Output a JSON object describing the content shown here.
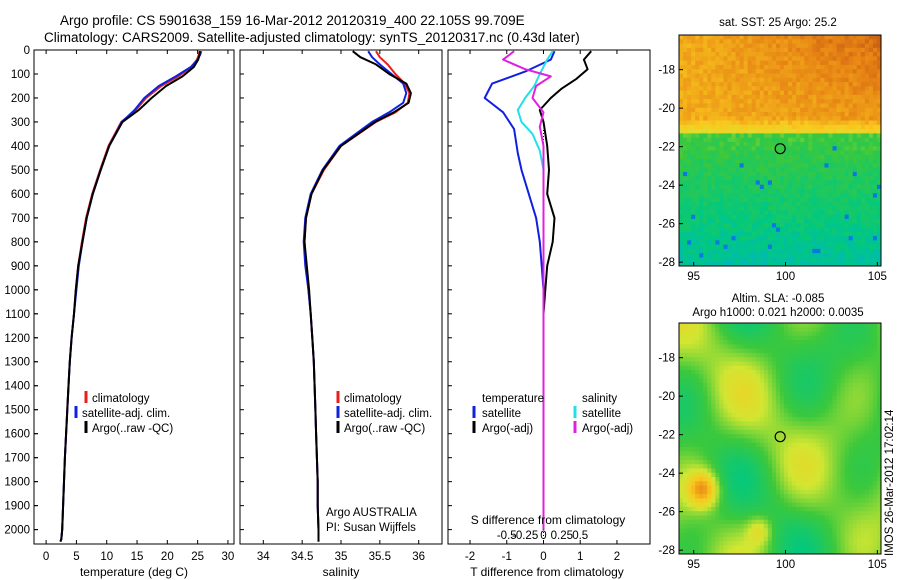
{
  "header": {
    "title_line1": "Argo profile: CS 5901638_159 16-Mar-2012 20120319_400 22.105S 99.709E",
    "title_line2": "Climatology: CARS2009. Satellite-adjusted climatology: synTS_20120317.nc (0.43d later)"
  },
  "watermark": "IMOS 26-Mar-2012 17:02:14",
  "colors": {
    "climatology": "#e8201a",
    "satellite": "#1020e0",
    "argo": "#000000",
    "sal_satellite": "#22e0e8",
    "sal_argo": "#e020e0"
  },
  "chart_data": [
    {
      "type": "line",
      "xlabel": "temperature (deg C)",
      "ylabel": "",
      "xlim": [
        -2,
        31
      ],
      "ylim": [
        2060,
        0
      ],
      "xticks": [
        "0",
        "5",
        "10",
        "15",
        "20",
        "25",
        "30"
      ],
      "xtick_values": [
        0,
        5,
        10,
        15,
        20,
        25,
        30
      ],
      "yticks": [
        "0",
        "100",
        "200",
        "300",
        "400",
        "500",
        "600",
        "700",
        "800",
        "900",
        "1000",
        "1100",
        "1200",
        "1300",
        "1400",
        "1500",
        "1600",
        "1700",
        "1800",
        "1900",
        "2000"
      ],
      "ytick_values": [
        0,
        100,
        200,
        300,
        400,
        500,
        600,
        700,
        800,
        900,
        1000,
        1100,
        1200,
        1300,
        1400,
        1500,
        1600,
        1700,
        1800,
        1900,
        2000
      ],
      "legend": [
        "climatology",
        "satellite-adj. clim.",
        "Argo(..raw -QC)"
      ],
      "series": [
        {
          "name": "climatology",
          "color_key": "climatology",
          "x": [
            25.3,
            25.2,
            24.9,
            24.0,
            21.8,
            19.0,
            16.5,
            14.8,
            12.4,
            10.3,
            8.9,
            7.6,
            6.6,
            5.9,
            5.3,
            4.9,
            4.6,
            4.2,
            3.9,
            3.7,
            3.5,
            3.3,
            3.1,
            2.95,
            2.8,
            2.65,
            2.5,
            2.35
          ],
          "y": [
            5,
            20,
            40,
            70,
            110,
            150,
            200,
            250,
            300,
            400,
            500,
            600,
            700,
            800,
            900,
            1000,
            1100,
            1200,
            1300,
            1400,
            1500,
            1600,
            1700,
            1800,
            1900,
            2000,
            2040,
            2050
          ]
        },
        {
          "name": "satellite-adj. clim.",
          "color_key": "satellite",
          "x": [
            25.6,
            25.4,
            25.0,
            23.9,
            21.4,
            18.6,
            16.2,
            14.6,
            12.5,
            10.4,
            9.0,
            7.7,
            6.7,
            6.0,
            5.4,
            5.0,
            4.6,
            4.2,
            3.9,
            3.7,
            3.5,
            3.3,
            3.1,
            2.95,
            2.8,
            2.65,
            2.5,
            2.35
          ],
          "y": [
            5,
            20,
            40,
            70,
            110,
            150,
            200,
            250,
            300,
            400,
            500,
            600,
            700,
            800,
            900,
            1000,
            1100,
            1200,
            1300,
            1400,
            1500,
            1600,
            1700,
            1800,
            1900,
            2000,
            2040,
            2050
          ]
        },
        {
          "name": "Argo(..raw -QC)",
          "color_key": "argo",
          "x": [
            25.4,
            25.3,
            25.1,
            24.4,
            22.5,
            19.8,
            17.4,
            15.3,
            12.6,
            10.4,
            9.0,
            7.7,
            6.7,
            6.0,
            5.3,
            4.9,
            4.6,
            4.2,
            3.9,
            3.7,
            3.5,
            3.3,
            3.1,
            2.95,
            2.8,
            2.65,
            2.5,
            2.35
          ],
          "y": [
            5,
            20,
            40,
            70,
            110,
            150,
            200,
            250,
            300,
            400,
            500,
            600,
            700,
            800,
            900,
            1000,
            1100,
            1200,
            1300,
            1400,
            1500,
            1600,
            1700,
            1800,
            1900,
            2000,
            2040,
            2050
          ]
        }
      ]
    },
    {
      "type": "line",
      "xlabel": "salinity",
      "ylabel": "",
      "xlim": [
        33.7,
        36.3
      ],
      "ylim": [
        2060,
        0
      ],
      "xticks": [
        "34",
        "34.5",
        "35",
        "35.5",
        "36"
      ],
      "xtick_values": [
        34,
        34.5,
        35,
        35.5,
        36
      ],
      "legend": [
        "climatology",
        "satellite-adj. clim.",
        "Argo(..raw -QC)"
      ],
      "annotation": [
        "Argo AUSTRALIA",
        "PI: Susan Wijffels"
      ],
      "series": [
        {
          "name": "climatology",
          "color_key": "climatology",
          "x": [
            35.45,
            35.5,
            35.6,
            35.7,
            35.82,
            35.88,
            35.86,
            35.7,
            35.45,
            35.0,
            34.78,
            34.62,
            34.55,
            34.53,
            34.55,
            34.58,
            34.61,
            34.63,
            34.65,
            34.66,
            34.67,
            34.68,
            34.69,
            34.7,
            34.7,
            34.71,
            34.71
          ],
          "y": [
            5,
            30,
            60,
            100,
            140,
            180,
            220,
            260,
            300,
            400,
            500,
            600,
            700,
            800,
            900,
            1000,
            1100,
            1200,
            1300,
            1400,
            1500,
            1600,
            1700,
            1800,
            1900,
            2000,
            2050
          ]
        },
        {
          "name": "satellite-adj. clim.",
          "color_key": "satellite",
          "x": [
            35.35,
            35.4,
            35.5,
            35.65,
            35.8,
            35.84,
            35.8,
            35.62,
            35.4,
            34.98,
            34.76,
            34.61,
            34.54,
            34.52,
            34.54,
            34.58,
            34.61,
            34.63,
            34.65,
            34.66,
            34.67,
            34.68,
            34.69,
            34.7,
            34.7,
            34.71,
            34.71
          ],
          "y": [
            5,
            30,
            60,
            100,
            140,
            180,
            220,
            260,
            300,
            400,
            500,
            600,
            700,
            800,
            900,
            1000,
            1100,
            1200,
            1300,
            1400,
            1500,
            1600,
            1700,
            1800,
            1900,
            2000,
            2050
          ]
        },
        {
          "name": "Argo(..raw -QC)",
          "color_key": "argo",
          "x": [
            35.15,
            35.25,
            35.45,
            35.62,
            35.84,
            35.9,
            35.87,
            35.68,
            35.44,
            35.0,
            34.77,
            34.62,
            34.55,
            34.53,
            34.56,
            34.59,
            34.61,
            34.63,
            34.65,
            34.66,
            34.67,
            34.68,
            34.69,
            34.7,
            34.7,
            34.71,
            34.71
          ],
          "y": [
            5,
            30,
            60,
            100,
            140,
            180,
            220,
            260,
            300,
            400,
            500,
            600,
            700,
            800,
            900,
            1000,
            1100,
            1200,
            1300,
            1400,
            1500,
            1600,
            1700,
            1800,
            1900,
            2000,
            2050
          ]
        }
      ]
    },
    {
      "type": "line",
      "xlabel": "T difference from climatology",
      "top_label": "S difference from climatology",
      "xlim": [
        -2.6,
        2.9
      ],
      "ylim": [
        2060,
        0
      ],
      "xticks": [
        "-2",
        "-1",
        "0",
        "1",
        "2"
      ],
      "xtick_values": [
        -2,
        -1,
        0,
        1,
        2
      ],
      "s_ticks": [
        "-0.5",
        "-0.25",
        "0",
        "0.25",
        "0.5"
      ],
      "s_tick_values": [
        -0.5,
        -0.25,
        0,
        0.25,
        0.5
      ],
      "legend_left_title": "temperature",
      "legend_right_title": "salinity",
      "legend": [
        "satellite",
        "Argo(-adj)",
        "satellite",
        "Argo(-adj)"
      ],
      "series": [
        {
          "name": "satellite",
          "group": "temperature",
          "color_key": "satellite",
          "x": [
            0.3,
            0.2,
            -0.5,
            -1.4,
            -1.6,
            -1.1,
            -0.8,
            -0.7,
            -0.6,
            -0.4,
            -0.2,
            -0.1,
            -0.05,
            0.0,
            0.0,
            0.0,
            0.0,
            0.0,
            0.0,
            0.0,
            0.0,
            0.0,
            0.0
          ],
          "y": [
            5,
            40,
            90,
            140,
            200,
            260,
            330,
            430,
            500,
            600,
            700,
            800,
            900,
            1000,
            1100,
            1200,
            1300,
            1400,
            1500,
            1600,
            1700,
            1800,
            2000
          ]
        },
        {
          "name": "Argo(-adj)",
          "group": "temperature",
          "color_key": "argo",
          "x": [
            1.3,
            1.1,
            1.2,
            0.9,
            0.5,
            0.2,
            -0.1,
            0.0,
            0.1,
            0.15,
            0.1,
            0.3,
            0.25,
            0.1,
            0.05,
            0.0,
            0.0,
            0.0,
            0.0,
            0.0,
            0.0,
            0.0,
            0.0
          ],
          "y": [
            5,
            40,
            80,
            120,
            160,
            200,
            250,
            300,
            400,
            500,
            600,
            700,
            800,
            900,
            1000,
            1100,
            1200,
            1300,
            1400,
            1500,
            1600,
            1800,
            2000
          ]
        },
        {
          "name": "satellite",
          "group": "salinity",
          "color_key": "sal_satellite",
          "x": [
            0.25,
            0.1,
            -0.1,
            -0.25,
            -0.5,
            -0.7,
            -0.6,
            -0.3,
            -0.1,
            0.0,
            0.0,
            0.0,
            0.0,
            0.0,
            0.0,
            0.0,
            0.0,
            0.0,
            0.0
          ],
          "y": [
            5,
            40,
            100,
            150,
            200,
            250,
            300,
            350,
            420,
            500,
            600,
            700,
            800,
            900,
            1000,
            1200,
            1400,
            1600,
            2000
          ]
        },
        {
          "name": "Argo(-adj)",
          "group": "salinity",
          "color_key": "sal_argo",
          "x": [
            -0.8,
            -1.1,
            -0.5,
            0.2,
            -0.2,
            -0.3,
            0.0,
            -0.1,
            0.0,
            0.0,
            0.0,
            0.0,
            0.0
          ],
          "y": [
            5,
            40,
            80,
            110,
            150,
            200,
            260,
            320,
            400,
            500,
            600,
            800,
            2000
          ]
        }
      ]
    },
    {
      "type": "heatmap",
      "title": "sat. SST: 25 Argo: 25.2",
      "xlim": [
        94.2,
        105.2
      ],
      "ylim": [
        -28.2,
        -16.2
      ],
      "xticks": [
        "95",
        "100",
        "105"
      ],
      "xtick_values": [
        95,
        100,
        105
      ],
      "yticks": [
        "-18",
        "-20",
        "-22",
        "-24",
        "-26",
        "-28"
      ],
      "ytick_values": [
        -18,
        -20,
        -22,
        -24,
        -26,
        -28
      ],
      "marker": {
        "lon": 99.709,
        "lat": -22.105
      }
    },
    {
      "type": "heatmap",
      "title_line1": "Altim. SLA: -0.085",
      "title_line2": "Argo h1000: 0.021 h2000: 0.0035",
      "xlim": [
        94.2,
        105.2
      ],
      "ylim": [
        -28.2,
        -16.2
      ],
      "xticks": [
        "95",
        "100",
        "105"
      ],
      "xtick_values": [
        95,
        100,
        105
      ],
      "yticks": [
        "-18",
        "-20",
        "-22",
        "-24",
        "-26",
        "-28"
      ],
      "ytick_values": [
        -18,
        -20,
        -22,
        -24,
        -26,
        -28
      ],
      "marker": {
        "lon": 99.709,
        "lat": -22.105
      }
    }
  ]
}
